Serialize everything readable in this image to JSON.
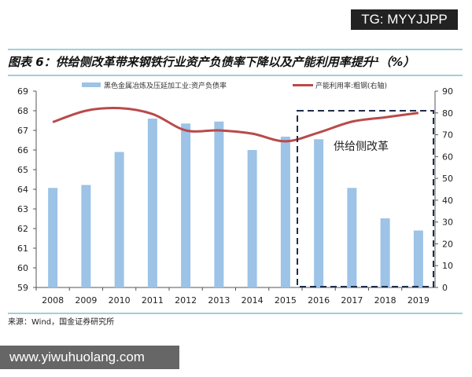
{
  "watermark_top": "TG: MYYJJPP",
  "title": "图表 6：供给侧改革带来钢铁行业资产负债率下降以及产能利用率提升¹（%）",
  "source": "来源：Wind，国金证券研究所",
  "watermark_bottom": "www.yiwuhuolang.com",
  "chart_data": {
    "type": "bar+line",
    "categories": [
      "2008",
      "2009",
      "2010",
      "2011",
      "2012",
      "2013",
      "2014",
      "2015",
      "2016",
      "2017",
      "2018",
      "2019"
    ],
    "series": [
      {
        "name": "黑色金属冶炼及压延加工业:资产负债率",
        "type": "bar",
        "axis": "left",
        "color": "#9dc3e6",
        "values": [
          64.07,
          64.22,
          65.9,
          67.6,
          67.35,
          67.45,
          66.0,
          66.68,
          66.55,
          64.07,
          62.52,
          61.9
        ]
      },
      {
        "name": "产能利用率:粗钢(右轴)",
        "type": "line",
        "axis": "right",
        "color": "#b94a4a",
        "values": [
          75.8,
          81,
          82.2,
          79.5,
          72,
          72,
          70.5,
          67,
          71,
          76,
          78,
          80
        ]
      }
    ],
    "ylim_left": [
      59,
      69
    ],
    "yticks_left": [
      59,
      60,
      61,
      62,
      63,
      64,
      65,
      66,
      67,
      68,
      69
    ],
    "ylim_right": [
      0,
      90
    ],
    "yticks_right": [
      0,
      10,
      20,
      30,
      40,
      50,
      60,
      70,
      80,
      90
    ],
    "annotation": "供给侧改革",
    "legend": "top",
    "grid": false
  }
}
